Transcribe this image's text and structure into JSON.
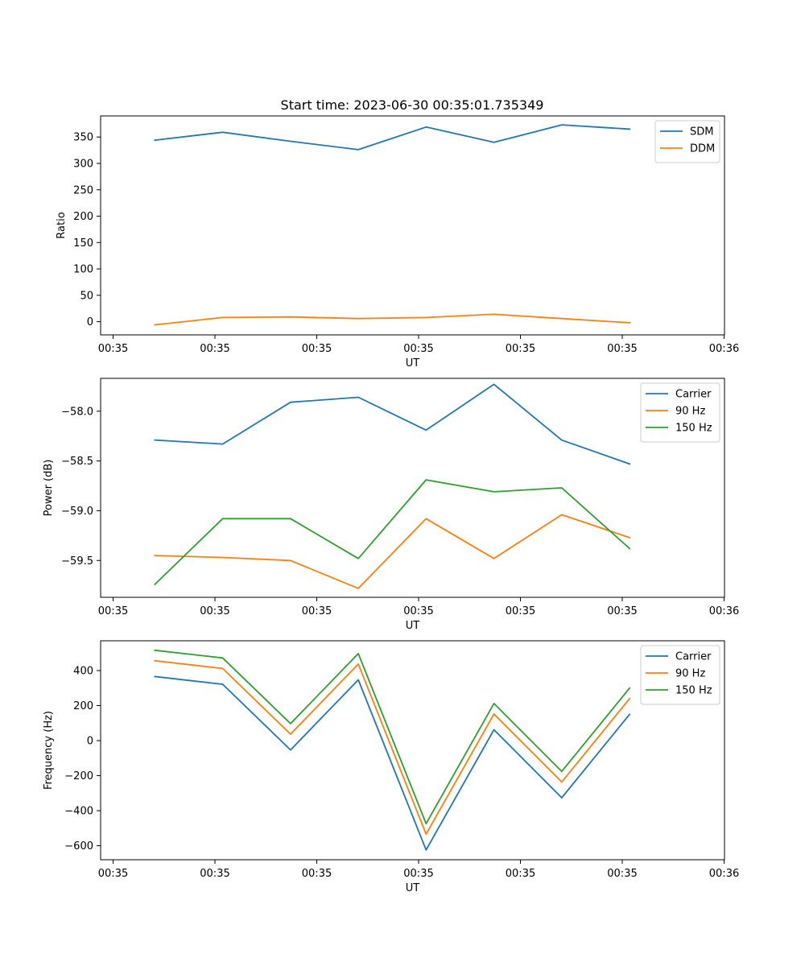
{
  "figure": {
    "title": "Start time: 2023-06-30 00:35:01.735349"
  },
  "chart_data": [
    {
      "type": "line",
      "title": "Start time: 2023-06-30 00:35:01.735349",
      "xlabel": "UT",
      "ylabel": "Ratio",
      "x_ticks": [
        "00:35",
        "00:35",
        "00:35",
        "00:35",
        "00:35",
        "00:35",
        "00:36"
      ],
      "x": [
        1,
        2,
        3,
        4,
        5,
        6,
        7,
        8
      ],
      "xlim": [
        0.2,
        9.4
      ],
      "ylim": [
        -25,
        390
      ],
      "y_ticks": [
        0,
        50,
        100,
        150,
        200,
        250,
        300,
        350
      ],
      "y_tick_labels": [
        "0",
        "50",
        "100",
        "150",
        "200",
        "250",
        "300",
        "350"
      ],
      "legend": "top-right",
      "series": [
        {
          "name": "SDM",
          "color": "#1f77b4",
          "values": [
            344,
            359,
            342,
            326,
            369,
            340,
            373,
            365
          ]
        },
        {
          "name": "DDM",
          "color": "#ff7f0e",
          "values": [
            -6,
            8,
            9,
            6,
            8,
            14,
            6,
            -2
          ]
        }
      ]
    },
    {
      "type": "line",
      "xlabel": "UT",
      "ylabel": "Power (dB)",
      "x_ticks": [
        "00:35",
        "00:35",
        "00:35",
        "00:35",
        "00:35",
        "00:35",
        "00:36"
      ],
      "x": [
        1,
        2,
        3,
        4,
        5,
        6,
        7,
        8
      ],
      "xlim": [
        0.2,
        9.4
      ],
      "ylim": [
        -59.87,
        -57.67
      ],
      "y_ticks": [
        -59.5,
        -59.0,
        -58.5,
        -58.0
      ],
      "y_tick_labels": [
        "−59.5",
        "−59.0",
        "−58.5",
        "−58.0"
      ],
      "legend": "top-right",
      "series": [
        {
          "name": "Carrier",
          "color": "#1f77b4",
          "values": [
            -58.29,
            -58.33,
            -57.91,
            -57.86,
            -58.19,
            -57.73,
            -58.29,
            -58.53
          ]
        },
        {
          "name": "90 Hz",
          "color": "#ff7f0e",
          "values": [
            -59.45,
            -59.47,
            -59.5,
            -59.78,
            -59.08,
            -59.48,
            -59.04,
            -59.27
          ]
        },
        {
          "name": "150 Hz",
          "color": "#2ca02c",
          "values": [
            -59.74,
            -59.08,
            -59.08,
            -59.48,
            -58.69,
            -58.81,
            -58.77,
            -59.38
          ]
        }
      ]
    },
    {
      "type": "line",
      "xlabel": "UT",
      "ylabel": "Frequency (Hz)",
      "x_ticks": [
        "00:35",
        "00:35",
        "00:35",
        "00:35",
        "00:35",
        "00:35",
        "00:36"
      ],
      "x": [
        1,
        2,
        3,
        4,
        5,
        6,
        7,
        8
      ],
      "xlim": [
        0.2,
        9.4
      ],
      "ylim": [
        -680,
        570
      ],
      "y_ticks": [
        -600,
        -400,
        -200,
        0,
        200,
        400
      ],
      "y_tick_labels": [
        "−600",
        "−400",
        "−200",
        "0",
        "200",
        "400"
      ],
      "legend": "top-right",
      "series": [
        {
          "name": "Carrier",
          "color": "#1f77b4",
          "values": [
            366,
            322,
            -53,
            347,
            -624,
            62,
            -326,
            150
          ]
        },
        {
          "name": "90 Hz",
          "color": "#ff7f0e",
          "values": [
            456,
            412,
            37,
            437,
            -534,
            152,
            -236,
            240
          ]
        },
        {
          "name": "150 Hz",
          "color": "#2ca02c",
          "values": [
            516,
            472,
            97,
            497,
            -474,
            212,
            -176,
            300
          ]
        }
      ]
    }
  ]
}
